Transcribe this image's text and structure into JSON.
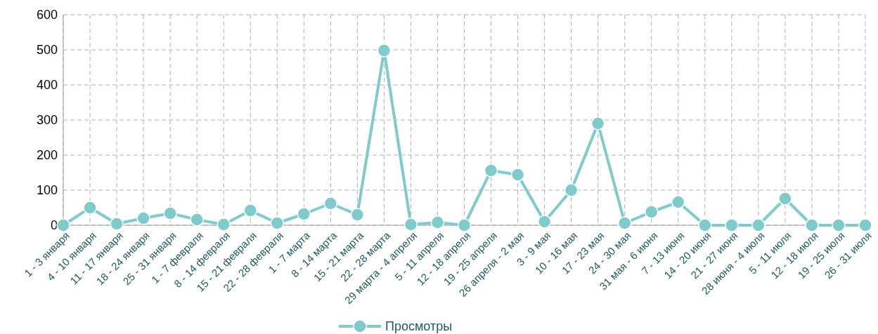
{
  "chart_data": {
    "type": "line",
    "categories": [
      "1 - 3 января",
      "4 - 10 января",
      "11 - 17 января",
      "18 - 24 января",
      "25 - 31 января",
      "1 - 7 февраля",
      "8 - 14 февраля",
      "15 - 21 февраля",
      "22 - 28 февраля",
      "1 - 7 марта",
      "8 - 14 марта",
      "15 - 21 марта",
      "22 - 28 марта",
      "29 марта - 4 апреля",
      "5 - 11 апреля",
      "12 - 18 апреля",
      "19 - 25 апреля",
      "26 апреля - 2 мая",
      "3 - 9 мая",
      "10 - 16 мая",
      "17 - 23 мая",
      "24 - 30 мая",
      "31 мая - 6 июня",
      "7 - 13 июня",
      "14 - 20 июня",
      "21 - 27 июня",
      "28 июня - 4 июля",
      "5 - 11 июля",
      "12 - 18 июля",
      "19 - 25 июля",
      "26 - 31 июля"
    ],
    "series": [
      {
        "name": "Просмотры",
        "color": "#7ecbcb",
        "values": [
          0,
          50,
          4,
          20,
          34,
          16,
          2,
          42,
          6,
          32,
          62,
          30,
          498,
          2,
          8,
          0,
          156,
          144,
          10,
          100,
          290,
          6,
          38,
          66,
          0,
          0,
          0,
          76,
          0,
          0,
          0
        ]
      }
    ],
    "ylim": [
      0,
      600
    ],
    "yticks": [
      0,
      100,
      200,
      300,
      400,
      500,
      600
    ],
    "grid": true,
    "legend": "bottom",
    "marker": "circle",
    "line_style": "solid"
  }
}
